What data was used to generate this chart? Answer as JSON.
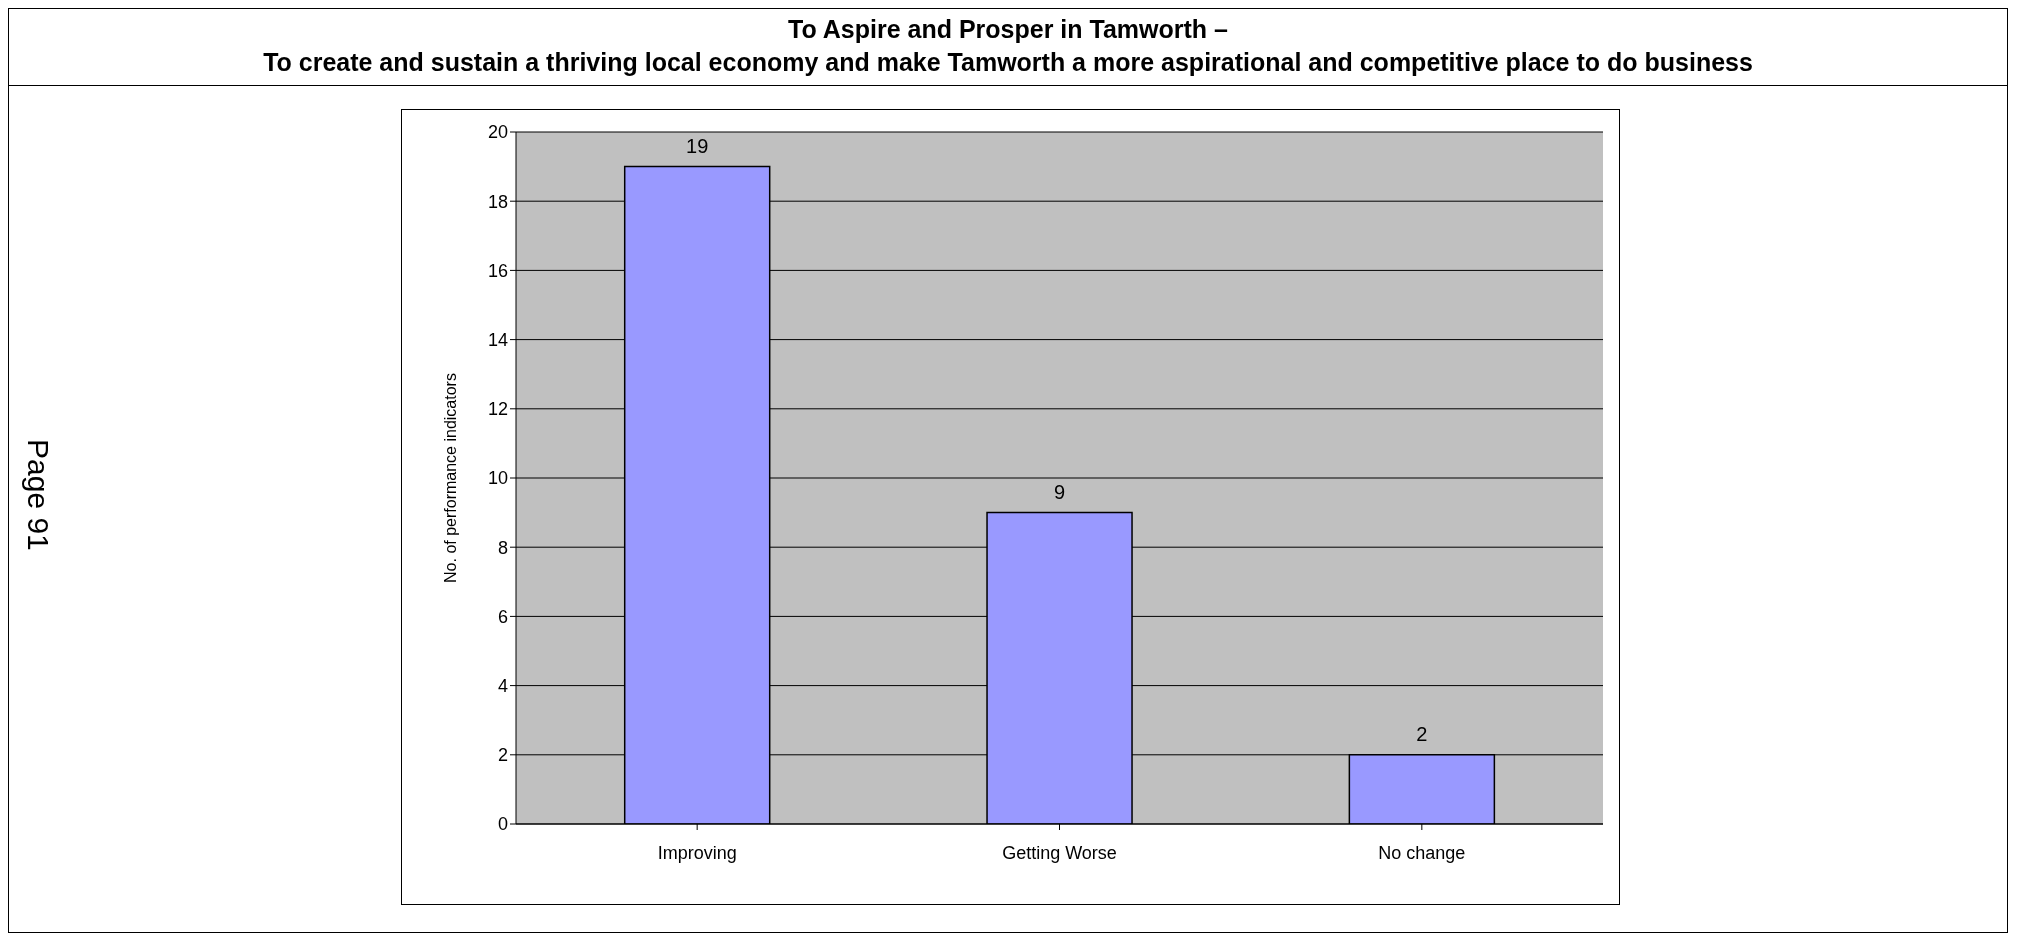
{
  "chart_data": {
    "type": "bar",
    "title": "To Aspire and Prosper in Tamworth –\nTo create and sustain a thriving local economy and make Tamworth a more aspirational and competitive place to do business",
    "ylabel": "No. of performance indicators",
    "categories": [
      "Improving",
      "Getting Worse",
      "No change"
    ],
    "values": [
      19,
      9,
      2
    ],
    "color": "#9999ff",
    "ylim": [
      0,
      20
    ],
    "yticks": [
      0,
      2,
      4,
      6,
      8,
      10,
      12,
      14,
      16,
      18,
      20
    ],
    "grid": "y",
    "data_labels": true,
    "legend": false,
    "annotations": [
      "Page 91"
    ]
  }
}
